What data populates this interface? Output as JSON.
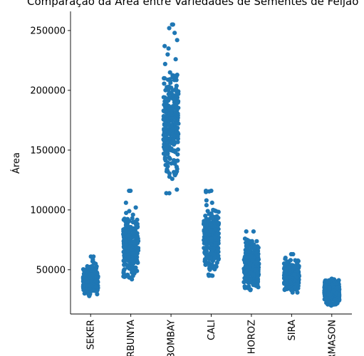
{
  "chart_data": {
    "type": "scatter",
    "style": "strip",
    "title": "Comparação da Área entre Variedades de Sementes de Feijão",
    "xlabel": "",
    "ylabel": "Área",
    "categories": [
      "SEKER",
      "BARBUNYA",
      "BOMBAY",
      "CALI",
      "HOROZ",
      "SIRA",
      "DERMASON"
    ],
    "y_ticks": [
      50000,
      100000,
      150000,
      200000,
      250000
    ],
    "y_tick_labels": [
      "50000",
      "100000",
      "150000",
      "200000",
      "250000"
    ],
    "ylim": [
      13000,
      266000
    ],
    "grid": false,
    "legend": "none",
    "marker_color": "#1f77b4",
    "series": [
      {
        "category": "SEKER",
        "min": 28000,
        "max": 61000,
        "core_low": 29500,
        "core_high": 53000,
        "outliers": [
          61000,
          58500,
          57000,
          56000,
          55000
        ]
      },
      {
        "category": "BARBUNYA",
        "min": 42000,
        "max": 116000,
        "core_low": 43500,
        "core_high": 93000,
        "outliers": [
          116000,
          106000,
          102000,
          99000,
          97500,
          96000
        ]
      },
      {
        "category": "BOMBAY",
        "min": 114000,
        "max": 255000,
        "core_low": 126000,
        "core_high": 215000,
        "outliers": [
          255000,
          252000,
          248000,
          242000,
          237000,
          235000,
          230000,
          226000,
          222000,
          117000,
          114000
        ]
      },
      {
        "category": "CALI",
        "min": 45000,
        "max": 116000,
        "core_low": 50000,
        "core_high": 100000,
        "outliers": [
          116000,
          115500,
          115000,
          108000,
          106000,
          104000,
          46000,
          45000,
          45200
        ]
      },
      {
        "category": "HOROZ",
        "min": 33000,
        "max": 82000,
        "core_low": 33500,
        "core_high": 74000,
        "outliers": [
          82000,
          76000,
          75000
        ]
      },
      {
        "category": "SIRA",
        "min": 31000,
        "max": 63000,
        "core_low": 33000,
        "core_high": 58000,
        "outliers": [
          63000,
          60000,
          59000,
          31000
        ]
      },
      {
        "category": "DERMASON",
        "min": 20000,
        "max": 42500,
        "core_low": 20500,
        "core_high": 42000,
        "outliers": []
      }
    ]
  }
}
